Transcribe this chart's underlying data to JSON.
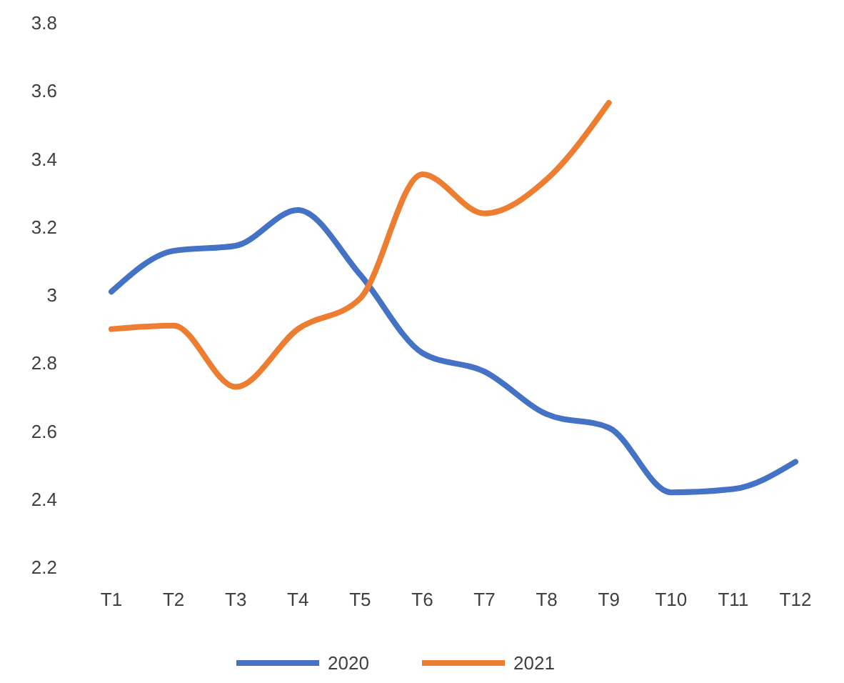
{
  "chart_data": {
    "type": "line",
    "categories": [
      "T1",
      "T2",
      "T3",
      "T4",
      "T5",
      "T6",
      "T7",
      "T8",
      "T9",
      "T10",
      "T11",
      "T12"
    ],
    "series": [
      {
        "name": "2020",
        "color": "#4472c4",
        "values": [
          3.01,
          3.13,
          3.145,
          3.25,
          3.06,
          2.83,
          2.775,
          2.65,
          2.61,
          2.42,
          2.43,
          2.51
        ]
      },
      {
        "name": "2021",
        "color": "#ed7d31",
        "values": [
          2.9,
          2.91,
          2.73,
          2.9,
          2.99,
          3.355,
          3.24,
          3.34,
          3.565,
          null,
          null,
          null
        ]
      }
    ],
    "ylim": [
      2.2,
      3.8
    ],
    "yticks": [
      2.2,
      2.4,
      2.6,
      2.8,
      3,
      3.2,
      3.4,
      3.6,
      3.8
    ],
    "legend": "bottom",
    "grid": false,
    "marker": "none",
    "line_style": "solid"
  }
}
